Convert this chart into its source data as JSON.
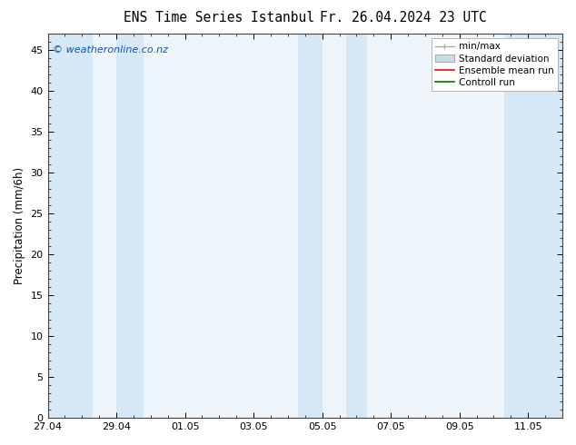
{
  "title_left": "ENS Time Series Istanbul",
  "title_right": "Fr. 26.04.2024 23 UTC",
  "ylabel": "Precipitation (mm/6h)",
  "watermark": "© weatheronline.co.nz",
  "ylim": [
    0,
    47
  ],
  "yticks": [
    0,
    5,
    10,
    15,
    20,
    25,
    30,
    35,
    40,
    45
  ],
  "xmin": 0.0,
  "xmax": 15.0,
  "xtick_positions": [
    0,
    2,
    4,
    6,
    8,
    10,
    12,
    14
  ],
  "xtick_labels": [
    "27.04",
    "29.04",
    "01.05",
    "03.05",
    "05.05",
    "07.05",
    "09.05",
    "11.05"
  ],
  "blue_bands": [
    [
      0.0,
      1.3
    ],
    [
      2.0,
      2.8
    ],
    [
      7.3,
      8.0
    ],
    [
      8.7,
      9.3
    ],
    [
      13.3,
      15.0
    ]
  ],
  "band_color": "#d6e8f5",
  "plot_bg_color": "#eef5fb",
  "bg_color": "#ffffff",
  "legend_labels": [
    "min/max",
    "Standard deviation",
    "Ensemble mean run",
    "Controll run"
  ],
  "legend_colors": [
    "#aaaaaa",
    "#aaaaaa",
    "#ff0000",
    "#007700"
  ],
  "watermark_color": "#1155aa",
  "title_fontsize": 10.5,
  "axis_fontsize": 8.5,
  "tick_fontsize": 8,
  "legend_fontsize": 7.5
}
